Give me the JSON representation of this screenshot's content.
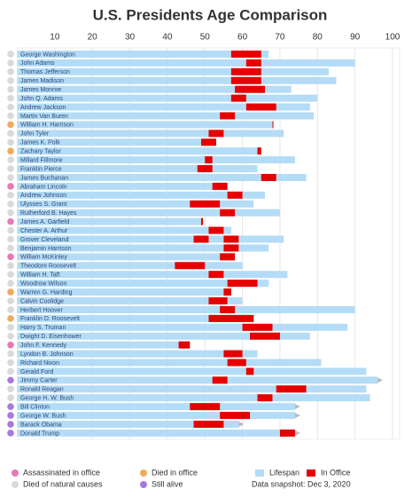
{
  "chart_data": {
    "type": "range-bar",
    "title": "U.S. Presidents Age Comparison",
    "xlim": [
      0,
      100
    ],
    "xticks": [
      10,
      20,
      30,
      40,
      50,
      60,
      70,
      80,
      90,
      100
    ],
    "grid": true,
    "categories": [
      "George Washington",
      "John Adams",
      "Thomas Jefferson",
      "James Madison",
      "James Monroe",
      "John Q. Adams",
      "Andrew Jackson",
      "Martin Van Buren",
      "William H. Harrison",
      "John Tyler",
      "James K. Polk",
      "Zachary Taylor",
      "Millard Fillmore",
      "Franklin Pierce",
      "James Buchanan",
      "Abraham Lincoln",
      "Andrew Johnson",
      "Ulysses S. Grant",
      "Rutherford B. Hayes",
      "James A. Garfield",
      "Chester A. Arthur",
      "Grover Cleveland",
      "Benjamin Harrison",
      "William McKinley",
      "Theodore Roosevelt",
      "William H. Taft",
      "Woodrow Wilson",
      "Warren G. Harding",
      "Calvin Coolidge",
      "Herbert Hoover",
      "Franklin D. Roosevelt",
      "Harry S. Truman",
      "Dwight D. Eisenhower",
      "John F. Kennedy",
      "Lyndon B. Johnson",
      "Richard Nixon",
      "Gerald Ford",
      "Jimmy Carter",
      "Ronald Reagan",
      "George H. W. Bush",
      "Bill Clinton",
      "George W. Bush",
      "Barack Obama",
      "Donald Trump"
    ],
    "series": [
      {
        "name": "Lifespan",
        "color": "#b4dcf6",
        "values": [
          67,
          90,
          83,
          85,
          73,
          80,
          78,
          79,
          68,
          71,
          53,
          65,
          74,
          64,
          77,
          56,
          66,
          63,
          70,
          49,
          57,
          71,
          67,
          58,
          60,
          72,
          67,
          57,
          60,
          90,
          63,
          88,
          78,
          46,
          64,
          81,
          93,
          96,
          93,
          94,
          74,
          74,
          59,
          74
        ]
      },
      {
        "name": "In Office",
        "color": "#e60000",
        "values": [
          [
            [
              57,
              65
            ]
          ],
          [
            [
              61,
              65
            ]
          ],
          [
            [
              57,
              65
            ]
          ],
          [
            [
              57,
              65
            ]
          ],
          [
            [
              58,
              66
            ]
          ],
          [
            [
              57,
              61
            ]
          ],
          [
            [
              61,
              69
            ]
          ],
          [
            [
              54,
              58
            ]
          ],
          [
            [
              68,
              68.1
            ]
          ],
          [
            [
              51,
              55
            ]
          ],
          [
            [
              49,
              53
            ]
          ],
          [
            [
              64,
              65
            ]
          ],
          [
            [
              50,
              52
            ]
          ],
          [
            [
              48,
              52
            ]
          ],
          [
            [
              65,
              69
            ]
          ],
          [
            [
              52,
              56
            ]
          ],
          [
            [
              56,
              60
            ]
          ],
          [
            [
              46,
              54
            ]
          ],
          [
            [
              54,
              58
            ]
          ],
          [
            [
              49,
              49.5
            ]
          ],
          [
            [
              51,
              55
            ]
          ],
          [
            [
              47,
              51
            ],
            [
              55,
              59
            ]
          ],
          [
            [
              55,
              59
            ]
          ],
          [
            [
              54,
              58
            ]
          ],
          [
            [
              42,
              50
            ]
          ],
          [
            [
              51,
              55
            ]
          ],
          [
            [
              56,
              64
            ]
          ],
          [
            [
              55,
              57
            ]
          ],
          [
            [
              51,
              56
            ]
          ],
          [
            [
              54,
              58
            ]
          ],
          [
            [
              51,
              63
            ]
          ],
          [
            [
              60,
              68
            ]
          ],
          [
            [
              62,
              70
            ]
          ],
          [
            [
              43,
              46
            ]
          ],
          [
            [
              55,
              60
            ]
          ],
          [
            [
              56,
              61
            ]
          ],
          [
            [
              61,
              63
            ]
          ],
          [
            [
              52,
              56
            ]
          ],
          [
            [
              69,
              77
            ]
          ],
          [
            [
              64,
              68
            ]
          ],
          [
            [
              46,
              54
            ]
          ],
          [
            [
              54,
              62
            ]
          ],
          [
            [
              47,
              55
            ]
          ],
          [
            [
              70,
              74
            ]
          ]
        ]
      }
    ],
    "status_legend": [
      {
        "name": "Assassinated in office",
        "color": "#e878b6"
      },
      {
        "name": "Died in office",
        "color": "#f0aa5a"
      },
      {
        "name": "Died of natural causes",
        "color": "#d9d9d9"
      },
      {
        "name": "Still alive",
        "color": "#a779e0"
      }
    ],
    "status": [
      "Died of natural causes",
      "Died of natural causes",
      "Died of natural causes",
      "Died of natural causes",
      "Died of natural causes",
      "Died of natural causes",
      "Died of natural causes",
      "Died of natural causes",
      "Died in office",
      "Died of natural causes",
      "Died of natural causes",
      "Died in office",
      "Died of natural causes",
      "Died of natural causes",
      "Died of natural causes",
      "Assassinated in office",
      "Died of natural causes",
      "Died of natural causes",
      "Died of natural causes",
      "Assassinated in office",
      "Died of natural causes",
      "Died of natural causes",
      "Died of natural causes",
      "Assassinated in office",
      "Died of natural causes",
      "Died of natural causes",
      "Died of natural causes",
      "Died in office",
      "Died of natural causes",
      "Died of natural causes",
      "Died in office",
      "Died of natural causes",
      "Died of natural causes",
      "Assassinated in office",
      "Died of natural causes",
      "Died of natural causes",
      "Died of natural causes",
      "Still alive",
      "Died of natural causes",
      "Died of natural causes",
      "Still alive",
      "Still alive",
      "Still alive",
      "Still alive"
    ],
    "note": "Data snapshot: Dec 3, 2020"
  }
}
